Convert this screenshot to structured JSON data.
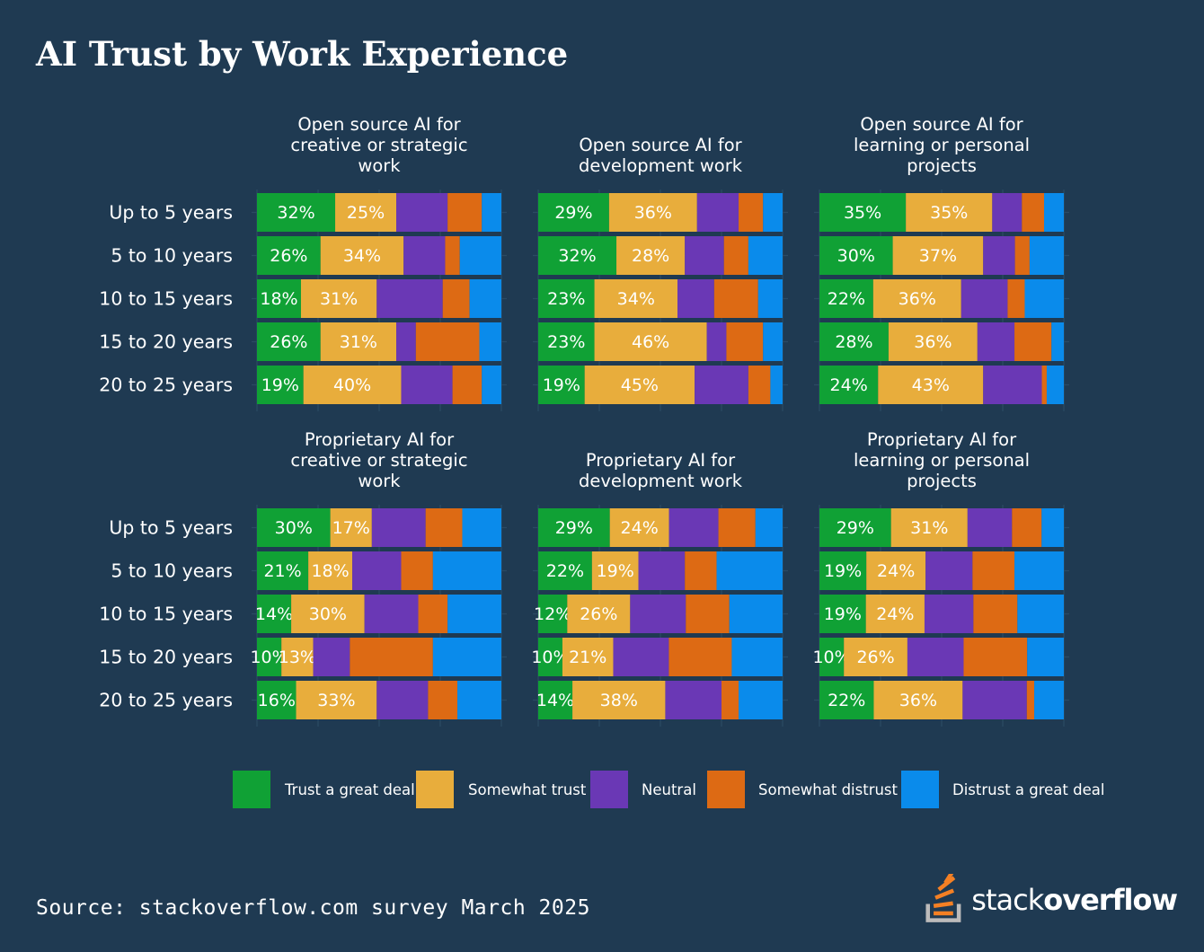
{
  "page": {
    "title": "AI Trust by Work Experience",
    "source": "Source: stackoverflow.com survey March 2025",
    "logo": {
      "word_light": "stack",
      "word_bold": "overflow"
    }
  },
  "chart_data": {
    "type": "stacked-bar",
    "orientation": "horizontal",
    "categories": [
      "Up to 5 years",
      "5 to 10 years",
      "10 to 15 years",
      "15 to 20 years",
      "20 to 25 years"
    ],
    "legend": [
      {
        "name": "Trust a great deal",
        "color": "#10a135"
      },
      {
        "name": "Somewhat trust",
        "color": "#e8ad3c"
      },
      {
        "name": "Neutral",
        "color": "#6a38b5"
      },
      {
        "name": "Somewhat distrust",
        "color": "#dd6a14"
      },
      {
        "name": "Distrust a great deal",
        "color": "#0a8beb"
      }
    ],
    "panels": [
      {
        "title": [
          "Open source AI for",
          "creative or strategic",
          "work"
        ],
        "values": [
          [
            32,
            25,
            21,
            14,
            8
          ],
          [
            26,
            34,
            17,
            6,
            17
          ],
          [
            18,
            31,
            27,
            11,
            13
          ],
          [
            26,
            31,
            8,
            26,
            9
          ],
          [
            19,
            40,
            21,
            12,
            8
          ]
        ]
      },
      {
        "title": [
          "Open source AI for",
          "development work"
        ],
        "values": [
          [
            29,
            36,
            17,
            10,
            8
          ],
          [
            32,
            28,
            16,
            10,
            14
          ],
          [
            23,
            34,
            15,
            18,
            10
          ],
          [
            23,
            46,
            8,
            15,
            8
          ],
          [
            19,
            45,
            22,
            9,
            5
          ]
        ]
      },
      {
        "title": [
          "Open source AI for",
          "learning or personal",
          "projects"
        ],
        "values": [
          [
            35,
            35,
            12,
            9,
            8
          ],
          [
            30,
            37,
            13,
            6,
            14
          ],
          [
            22,
            36,
            19,
            7,
            16
          ],
          [
            28,
            36,
            15,
            15,
            5
          ],
          [
            24,
            43,
            24,
            2,
            7
          ]
        ]
      },
      {
        "title": [
          "Proprietary AI for",
          "creative or strategic",
          "work"
        ],
        "values": [
          [
            30,
            17,
            22,
            15,
            16
          ],
          [
            21,
            18,
            20,
            13,
            28
          ],
          [
            14,
            30,
            22,
            12,
            22
          ],
          [
            10,
            13,
            15,
            34,
            28
          ],
          [
            16,
            33,
            21,
            12,
            18
          ]
        ]
      },
      {
        "title": [
          "Proprietary AI for",
          "development work"
        ],
        "values": [
          [
            29,
            24,
            20,
            15,
            11
          ],
          [
            22,
            19,
            19,
            13,
            27
          ],
          [
            12,
            26,
            23,
            18,
            22
          ],
          [
            10,
            21,
            23,
            26,
            21
          ],
          [
            14,
            38,
            23,
            7,
            18
          ]
        ]
      },
      {
        "title": [
          "Proprietary AI for",
          "learning or personal",
          "projects"
        ],
        "values": [
          [
            29,
            31,
            18,
            12,
            9
          ],
          [
            19,
            24,
            19,
            17,
            20
          ],
          [
            19,
            24,
            20,
            18,
            19
          ],
          [
            10,
            26,
            23,
            26,
            15
          ],
          [
            22,
            36,
            26,
            3,
            12
          ]
        ]
      }
    ]
  }
}
